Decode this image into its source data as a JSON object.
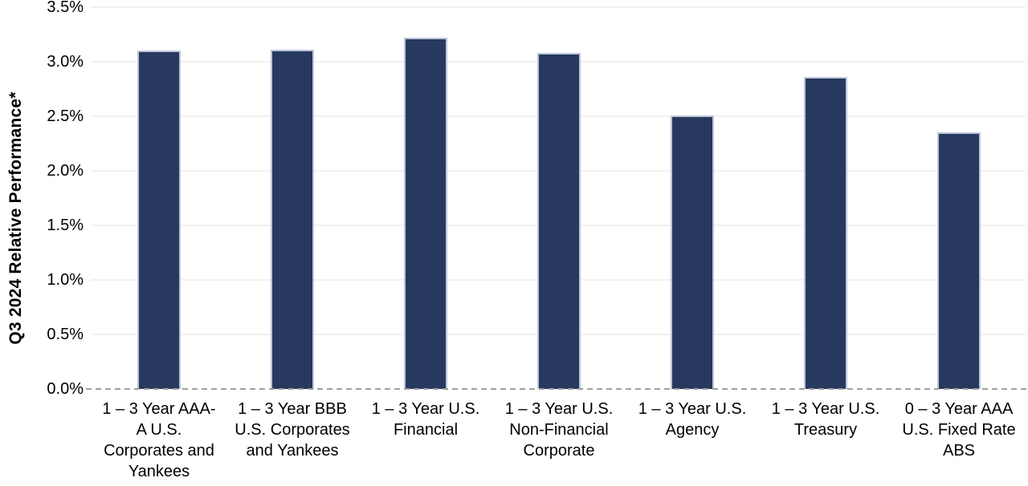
{
  "chart_data": {
    "type": "bar",
    "title": "",
    "xlabel": "",
    "ylabel": "Q3 2024 Relative Performance*",
    "unit": "%",
    "ylim": [
      0,
      3.5
    ],
    "yticks": [
      0,
      0.5,
      1.0,
      1.5,
      2.0,
      2.5,
      3.0,
      3.5
    ],
    "ytick_labels": [
      "0.0%",
      "0.5%",
      "1.0%",
      "1.5%",
      "2.0%",
      "2.5%",
      "3.0%",
      "3.5%"
    ],
    "grid": "horizontal-on",
    "zero_line_style": "dashed",
    "legend_position": "none",
    "categories": [
      "1 – 3 Year AAA-A U.S. Corporates and Yankees",
      "1 – 3 Year BBB U.S. Corporates and Yankees",
      "1 – 3 Year U.S. Financial",
      "1 – 3 Year U.S. Non-Financial Corporate",
      "1 – 3 Year U.S. Agency",
      "1 – 3 Year U.S. Treasury",
      "0 – 3 Year AAA U.S. Fixed Rate ABS"
    ],
    "category_lines": [
      [
        "1 – 3 Year AAA-",
        "A U.S.",
        "Corporates and",
        "Yankees"
      ],
      [
        "1 – 3 Year BBB",
        "U.S. Corporates",
        "and Yankees"
      ],
      [
        "1 – 3 Year U.S.",
        "Financial"
      ],
      [
        "1 – 3 Year U.S.",
        "Non-Financial",
        "Corporate"
      ],
      [
        "1 – 3 Year U.S.",
        "Agency"
      ],
      [
        "1 – 3 Year U.S.",
        "Treasury"
      ],
      [
        "0 – 3 Year AAA",
        "U.S. Fixed Rate",
        "ABS"
      ]
    ],
    "values": [
      3.1,
      3.11,
      3.22,
      3.08,
      2.51,
      2.86,
      2.35
    ],
    "colors": {
      "bar_fill": "#27395E",
      "bar_border": "#BCC4D6",
      "gridline": "#F1F1F1",
      "zero_line": "#9E9E9E",
      "text": "#000000",
      "background": "#FFFFFF"
    }
  }
}
